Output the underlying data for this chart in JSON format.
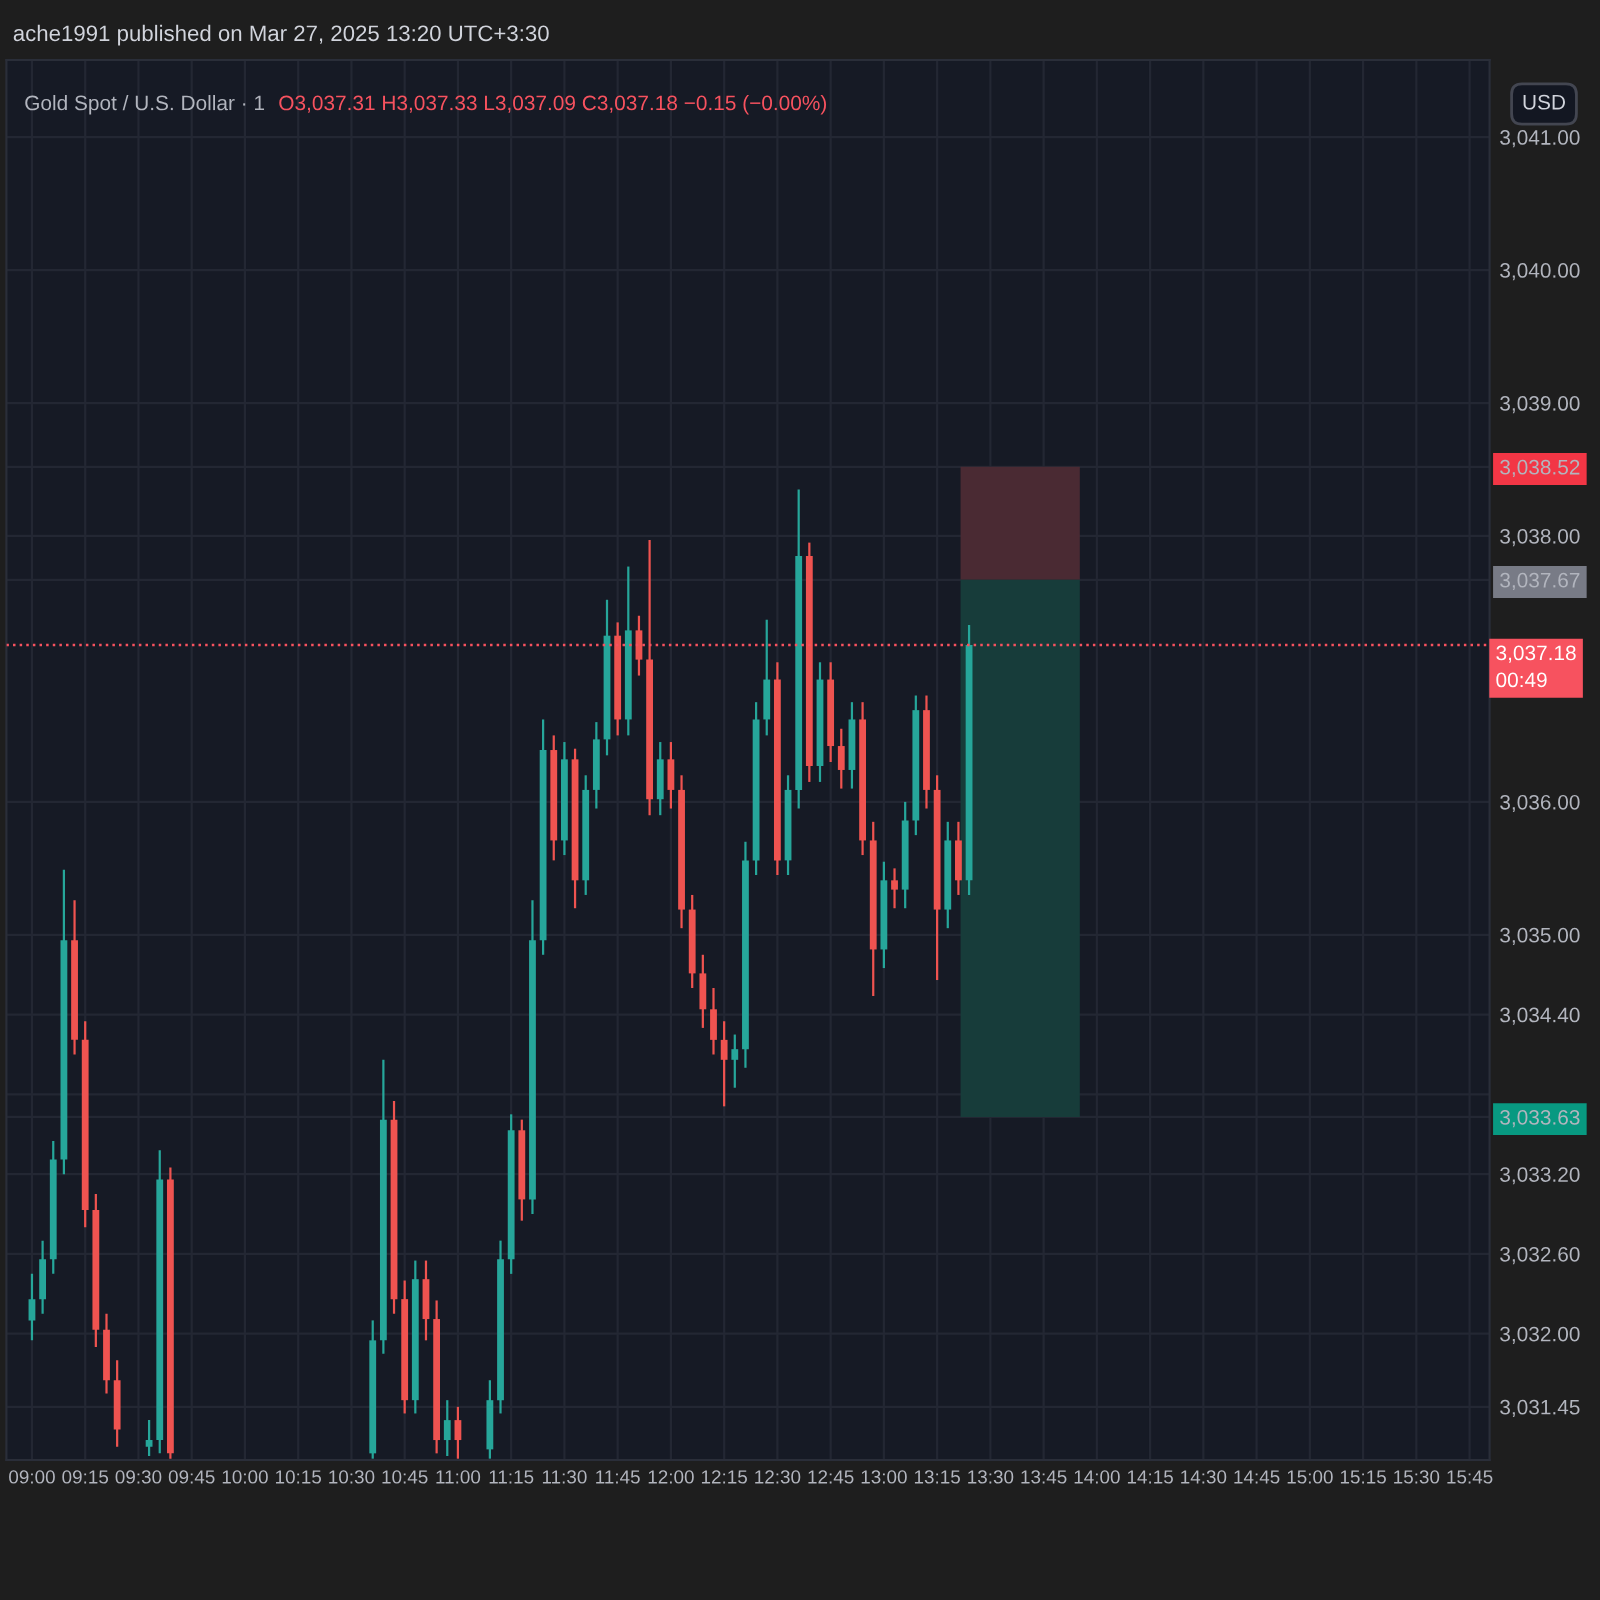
{
  "chart_data": {
    "type": "candlestick",
    "title": "Gold Spot / U.S. Dollar · 1",
    "subtitle": "O3,037.31 H3,037.33 L3,037.09 C3,037.18 −0.15 (−0.00%)",
    "annotations": [
      "ache1991 published on Mar 27, 2025 13:20 UTC+3:30",
      "USD"
    ],
    "x": [
      9.0,
      9.05,
      9.1,
      9.15,
      9.2,
      9.25,
      9.3,
      9.35,
      9.4,
      9.55,
      9.6,
      9.65,
      10.6,
      10.65,
      10.7,
      10.75,
      10.8,
      10.85,
      10.9,
      10.95,
      11.0,
      11.15,
      11.2,
      11.25,
      11.3,
      11.35,
      11.4,
      11.45,
      11.5,
      11.55,
      11.6,
      11.65,
      11.7,
      11.75,
      11.8,
      11.85,
      11.9,
      11.95,
      12.0,
      12.05,
      12.1,
      12.15,
      12.2,
      12.25,
      12.3,
      12.35,
      12.4,
      12.45,
      12.5,
      12.55,
      12.6,
      12.65,
      12.7,
      12.75,
      12.8,
      12.85,
      12.9,
      12.95,
      13.0,
      13.05,
      13.1,
      13.15,
      13.2,
      13.25,
      13.3,
      13.35,
      13.4
    ],
    "ohlc": [
      [
        3032.1,
        3032.45,
        3031.95,
        3032.26
      ],
      [
        3032.26,
        3032.7,
        3032.15,
        3032.56
      ],
      [
        3032.56,
        3033.45,
        3032.45,
        3033.31
      ],
      [
        3033.31,
        3035.49,
        3033.2,
        3034.96
      ],
      [
        3034.96,
        3035.26,
        3034.1,
        3034.21
      ],
      [
        3034.21,
        3034.35,
        3032.8,
        3032.93
      ],
      [
        3032.93,
        3033.05,
        3031.9,
        3032.03
      ],
      [
        3032.03,
        3032.15,
        3031.55,
        3031.65
      ],
      [
        3031.65,
        3031.8,
        3031.15,
        3031.28
      ],
      [
        3031.15,
        3031.35,
        3031.08,
        3031.2
      ],
      [
        3031.2,
        3033.38,
        3031.1,
        3033.16
      ],
      [
        3033.16,
        3033.25,
        3031.06,
        3031.1
      ],
      [
        3031.1,
        3032.1,
        3031.06,
        3031.95
      ],
      [
        3031.95,
        3034.06,
        3031.85,
        3033.61
      ],
      [
        3033.61,
        3033.75,
        3032.15,
        3032.26
      ],
      [
        3032.26,
        3032.4,
        3031.4,
        3031.5
      ],
      [
        3031.5,
        3032.55,
        3031.4,
        3032.41
      ],
      [
        3032.41,
        3032.55,
        3031.95,
        3032.11
      ],
      [
        3032.11,
        3032.25,
        3031.1,
        3031.2
      ],
      [
        3031.2,
        3031.5,
        3031.08,
        3031.35
      ],
      [
        3031.35,
        3031.45,
        3031.06,
        3031.2
      ],
      [
        3031.13,
        3031.65,
        3031.06,
        3031.5
      ],
      [
        3031.5,
        3032.7,
        3031.4,
        3032.56
      ],
      [
        3032.56,
        3033.65,
        3032.45,
        3033.53
      ],
      [
        3033.53,
        3033.61,
        3032.85,
        3033.01
      ],
      [
        3033.01,
        3035.26,
        3032.9,
        3034.96
      ],
      [
        3034.96,
        3036.62,
        3034.85,
        3036.39
      ],
      [
        3036.39,
        3036.5,
        3035.56,
        3035.71
      ],
      [
        3035.71,
        3036.45,
        3035.6,
        3036.32
      ],
      [
        3036.32,
        3036.4,
        3035.2,
        3035.41
      ],
      [
        3035.41,
        3036.2,
        3035.3,
        3036.09
      ],
      [
        3036.09,
        3036.6,
        3035.95,
        3036.47
      ],
      [
        3036.47,
        3037.52,
        3036.35,
        3037.25
      ],
      [
        3037.25,
        3037.35,
        3036.5,
        3036.62
      ],
      [
        3036.62,
        3037.77,
        3036.5,
        3037.29
      ],
      [
        3037.29,
        3037.4,
        3036.95,
        3037.07
      ],
      [
        3037.07,
        3037.97,
        3035.9,
        3036.02
      ],
      [
        3036.02,
        3036.45,
        3035.9,
        3036.32
      ],
      [
        3036.32,
        3036.45,
        3035.95,
        3036.09
      ],
      [
        3036.09,
        3036.2,
        3035.05,
        3035.19
      ],
      [
        3035.19,
        3035.3,
        3034.6,
        3034.71
      ],
      [
        3034.71,
        3034.85,
        3034.3,
        3034.44
      ],
      [
        3034.44,
        3034.6,
        3034.1,
        3034.21
      ],
      [
        3034.21,
        3034.35,
        3033.71,
        3034.06
      ],
      [
        3034.06,
        3034.25,
        3033.85,
        3034.14
      ],
      [
        3034.14,
        3035.7,
        3034.0,
        3035.56
      ],
      [
        3035.56,
        3036.75,
        3035.45,
        3036.62
      ],
      [
        3036.62,
        3037.37,
        3036.5,
        3036.92
      ],
      [
        3036.92,
        3037.05,
        3035.45,
        3035.56
      ],
      [
        3035.56,
        3036.2,
        3035.45,
        3036.09
      ],
      [
        3036.09,
        3038.35,
        3035.95,
        3037.85
      ],
      [
        3037.85,
        3037.95,
        3036.15,
        3036.27
      ],
      [
        3036.27,
        3037.05,
        3036.15,
        3036.92
      ],
      [
        3036.92,
        3037.05,
        3036.3,
        3036.42
      ],
      [
        3036.42,
        3036.55,
        3036.1,
        3036.24
      ],
      [
        3036.24,
        3036.75,
        3036.1,
        3036.62
      ],
      [
        3036.62,
        3036.75,
        3035.6,
        3035.71
      ],
      [
        3035.71,
        3035.85,
        3034.54,
        3034.89
      ],
      [
        3034.89,
        3035.55,
        3034.75,
        3035.41
      ],
      [
        3035.41,
        3035.5,
        3035.2,
        3035.34
      ],
      [
        3035.34,
        3036.0,
        3035.2,
        3035.86
      ],
      [
        3035.86,
        3036.8,
        3035.75,
        3036.69
      ],
      [
        3036.69,
        3036.8,
        3035.95,
        3036.09
      ],
      [
        3036.09,
        3036.2,
        3034.66,
        3035.19
      ],
      [
        3035.19,
        3035.85,
        3035.05,
        3035.71
      ],
      [
        3035.71,
        3035.85,
        3035.3,
        3035.41
      ],
      [
        3035.41,
        3037.33,
        3035.3,
        3037.18
      ]
    ],
    "series": [
      {
        "type": "bar",
        "color": "#4a2a33",
        "x": [
          13.64
        ],
        "base": [
          3037.67
        ],
        "values": [
          0.85
        ]
      },
      {
        "type": "bar",
        "color": "#173c3a",
        "x": [
          13.64
        ],
        "base": [
          3033.63
        ],
        "values": [
          4.04
        ]
      }
    ],
    "ref_lines": [
      {
        "axis": "y",
        "value": 3037.18,
        "label": "3,037.18\n00:49",
        "color": "#f7525f",
        "line_style": "dotted"
      }
    ],
    "xlim": [
      8.88,
      15.844
    ],
    "ylim": [
      3031.05,
      3041.58
    ],
    "xticks": [
      {
        "value": 9.0,
        "label": "09:00"
      },
      {
        "value": 9.25,
        "label": "09:15"
      },
      {
        "value": 9.5,
        "label": "09:30"
      },
      {
        "value": 9.75,
        "label": "09:45"
      },
      {
        "value": 10.0,
        "label": "10:00"
      },
      {
        "value": 10.25,
        "label": "10:15"
      },
      {
        "value": 10.5,
        "label": "10:30"
      },
      {
        "value": 10.75,
        "label": "10:45"
      },
      {
        "value": 11.0,
        "label": "11:00"
      },
      {
        "value": 11.25,
        "label": "11:15"
      },
      {
        "value": 11.5,
        "label": "11:30"
      },
      {
        "value": 11.75,
        "label": "11:45"
      },
      {
        "value": 12.0,
        "label": "12:00"
      },
      {
        "value": 12.25,
        "label": "12:15"
      },
      {
        "value": 12.5,
        "label": "12:30"
      },
      {
        "value": 12.75,
        "label": "12:45"
      },
      {
        "value": 13.0,
        "label": "13:00"
      },
      {
        "value": 13.25,
        "label": "13:15"
      },
      {
        "value": 13.5,
        "label": "13:30"
      },
      {
        "value": 13.75,
        "label": "13:45"
      },
      {
        "value": 14.0,
        "label": "14:00"
      },
      {
        "value": 14.25,
        "label": "14:15"
      },
      {
        "value": 14.5,
        "label": "14:30"
      },
      {
        "value": 14.75,
        "label": "14:45"
      },
      {
        "value": 15.0,
        "label": "15:00"
      },
      {
        "value": 15.25,
        "label": "15:15"
      },
      {
        "value": 15.5,
        "label": "15:30"
      },
      {
        "value": 15.75,
        "label": "15:45"
      }
    ],
    "yticks": [
      {
        "value": 3031.45,
        "label": "3,031.45"
      },
      {
        "value": 3032.0,
        "label": "3,032.00"
      },
      {
        "value": 3032.6,
        "label": "3,032.60"
      },
      {
        "value": 3033.2,
        "label": "3,033.20"
      },
      {
        "value": 3033.63,
        "label": "3,033.63"
      },
      {
        "value": 3033.8,
        "label": null
      },
      {
        "value": 3034.4,
        "label": "3,034.40"
      },
      {
        "value": 3035.0,
        "label": "3,035.00"
      },
      {
        "value": 3036.0,
        "label": "3,036.00"
      },
      {
        "value": 3037.67,
        "label": "3,037.67"
      },
      {
        "value": 3038.0,
        "label": "3,038.00"
      },
      {
        "value": 3038.52,
        "label": "3,038.52"
      },
      {
        "value": 3039.0,
        "label": "3,039.00"
      },
      {
        "value": 3040.0,
        "label": "3,040.00"
      },
      {
        "value": 3041.0,
        "label": "3,041.00"
      }
    ],
    "grid": true
  }
}
